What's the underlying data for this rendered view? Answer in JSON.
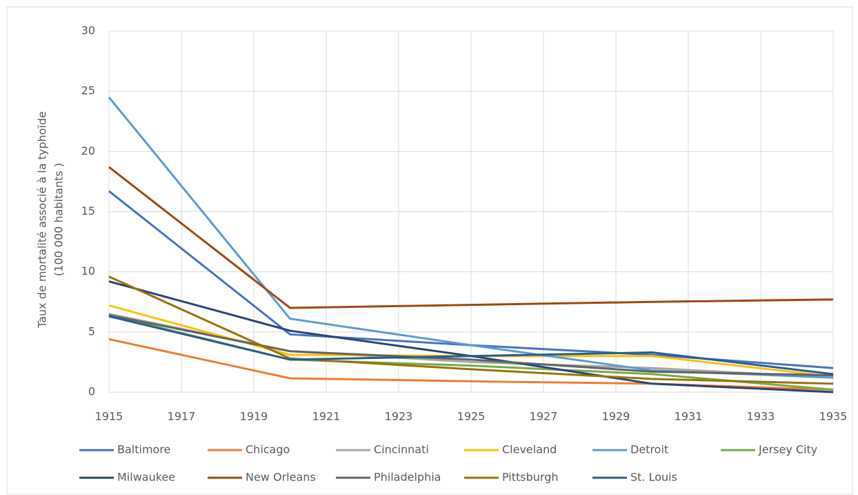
{
  "chart_data": {
    "type": "line",
    "y_label": [
      "Taux de mortalité associé à la typhoïde",
      "(100 000 habitants )"
    ],
    "x": [
      1915,
      1920,
      1925,
      1930,
      1935
    ],
    "xlim": [
      1915,
      1935
    ],
    "xticks": [
      1915,
      1917,
      1919,
      1921,
      1923,
      1925,
      1927,
      1929,
      1931,
      1933,
      1935
    ],
    "ylim": [
      0,
      30
    ],
    "yticks": [
      0,
      5,
      10,
      15,
      20,
      25,
      30
    ],
    "grid": true,
    "series": [
      {
        "name": "Baltimore",
        "color": "#4472c4",
        "values": [
          16.7,
          4.8,
          3.9,
          3.1,
          2.0
        ]
      },
      {
        "name": "Chicago",
        "color": "#ed7d31",
        "values": [
          4.4,
          1.15,
          0.9,
          0.7,
          0.2
        ]
      },
      {
        "name": "Cincinnati",
        "color": "#a5a5a5",
        "values": [
          6.5,
          3.4,
          2.5,
          2.0,
          1.2
        ]
      },
      {
        "name": "Cleveland",
        "color": "#ffc000",
        "values": [
          7.2,
          3.1,
          3.0,
          3.0,
          1.3
        ]
      },
      {
        "name": "Detroit",
        "color": "#5b9bd5",
        "values": [
          24.5,
          6.1,
          3.9,
          1.8,
          1.2
        ]
      },
      {
        "name": "Jersey City",
        "color": "#70ad47",
        "values": [
          6.4,
          2.7,
          2.2,
          1.5,
          0.2
        ]
      },
      {
        "name": "Milwaukee",
        "color": "#264478",
        "values": [
          9.2,
          5.1,
          3.0,
          0.7,
          0
        ]
      },
      {
        "name": "New Orleans",
        "color": "#9e480e",
        "values": [
          18.7,
          7.0,
          7.25,
          7.5,
          7.7
        ]
      },
      {
        "name": "Philadelphia",
        "color": "#636363",
        "values": [
          6.4,
          3.4,
          2.7,
          1.7,
          1.4
        ]
      },
      {
        "name": "Pittsburgh",
        "color": "#997300",
        "values": [
          9.6,
          2.8,
          1.9,
          1.1,
          0.7
        ]
      },
      {
        "name": "St. Louis",
        "color": "#255e91",
        "values": [
          6.3,
          2.7,
          3.0,
          3.3,
          1.5
        ]
      }
    ]
  }
}
